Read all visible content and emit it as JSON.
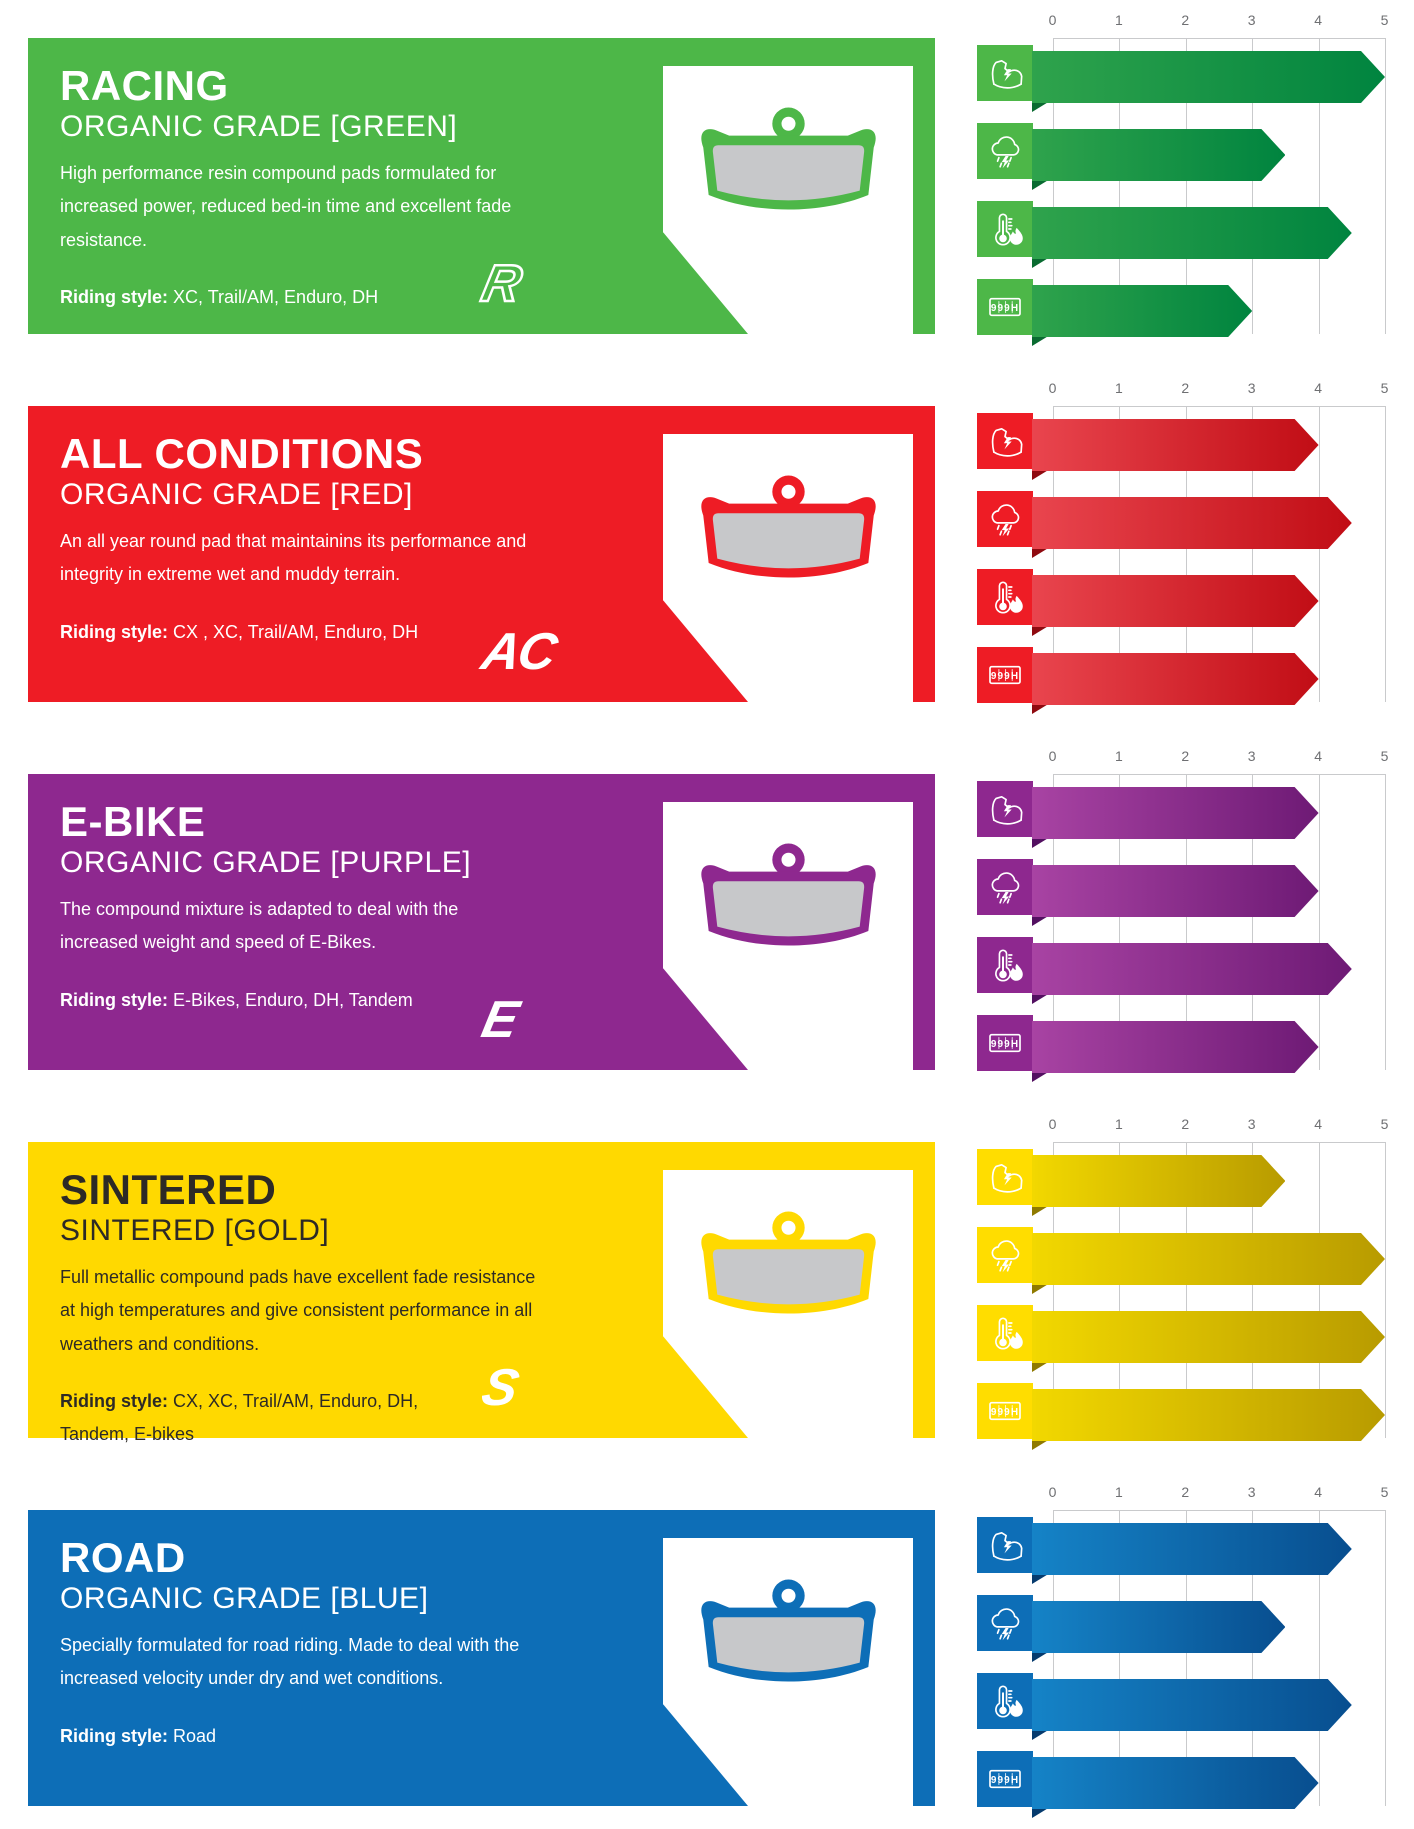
{
  "odometer_label": "999H",
  "axis": {
    "ticks": [
      "0",
      "1",
      "2",
      "3",
      "4",
      "5"
    ],
    "min": 0,
    "max": 5
  },
  "metrics": [
    {
      "id": "braking-power",
      "icon": "bicep-power-icon"
    },
    {
      "id": "wet-weather",
      "icon": "storm-cloud-icon"
    },
    {
      "id": "heat-fade-resistance",
      "icon": "thermometer-flame-icon"
    },
    {
      "id": "durability-pad-life",
      "icon": "odometer-999h-icon"
    }
  ],
  "panels": [
    {
      "id": "racing",
      "title": "RACING",
      "subtitle": "ORGANIC GRADE [GREEN]",
      "description": "High performance resin compound pads formulated for increased power, reduced bed-in time and excellent fade resistance.",
      "riding_style_label": "Riding style:",
      "riding_style": "XC, Trail/AM, Enduro, DH",
      "logo": "R",
      "logo_outline": true,
      "values": [
        5,
        3.5,
        4.5,
        3
      ],
      "colors": {
        "bg": "#4DB748",
        "tile": "#4DB748",
        "barFrom": "#2FA34C",
        "barTo": "#00843F",
        "fold": "#0A6B31",
        "fg": "#ffffff"
      }
    },
    {
      "id": "all-conditions",
      "title": "ALL CONDITIONS",
      "subtitle": "ORGANIC GRADE [RED]",
      "description": "An all year round pad that maintainins its performance and integrity in extreme wet and muddy terrain.",
      "riding_style_label": "Riding style:",
      "riding_style": "CX , XC, Trail/AM, Enduro, DH",
      "logo": "AC",
      "logo_outline": false,
      "values": [
        4,
        4.5,
        4,
        4
      ],
      "colors": {
        "bg": "#EE1C25",
        "tile": "#EE1C25",
        "barFrom": "#E9454E",
        "barTo": "#C10D15",
        "fold": "#8F0A10",
        "fg": "#ffffff"
      }
    },
    {
      "id": "e-bike",
      "title": "E-BIKE",
      "subtitle": "ORGANIC GRADE [PURPLE]",
      "description": "The compound mixture is adapted to deal with the increased weight and speed of E-Bikes.",
      "riding_style_label": "Riding style:",
      "riding_style": "E-Bikes, Enduro, DH, Tandem",
      "logo": "E",
      "logo_outline": false,
      "values": [
        4,
        4,
        4.5,
        4
      ],
      "colors": {
        "bg": "#8E288F",
        "tile": "#8E288F",
        "barFrom": "#A843A3",
        "barTo": "#6E1A75",
        "fold": "#531061",
        "fg": "#ffffff"
      }
    },
    {
      "id": "sintered",
      "title": "SINTERED",
      "subtitle": "SINTERED [GOLD]",
      "description": "Full metallic compound pads have excellent fade resistance at high temperatures and give consistent performance in all weathers and conditions.",
      "riding_style_label": "Riding style:",
      "riding_style": "CX, XC, Trail/AM, Enduro, DH, Tandem, E-bikes",
      "logo": "S",
      "logo_outline": false,
      "values": [
        3.5,
        5,
        5,
        5
      ],
      "colors": {
        "bg": "#FFD900",
        "tile": "#FFDD00",
        "barFrom": "#F2D800",
        "barTo": "#B89B00",
        "fold": "#8F7A00",
        "fg": "#2D2A26"
      }
    },
    {
      "id": "road",
      "title": "ROAD",
      "subtitle": "ORGANIC GRADE [BLUE]",
      "description": "Specially formulated for road riding. Made to deal with the increased velocity under dry and wet conditions.",
      "riding_style_label": "Riding style:",
      "riding_style": "Road",
      "logo": "",
      "logo_outline": false,
      "values": [
        4.5,
        3.5,
        4.5,
        4
      ],
      "colors": {
        "bg": "#0D6EB7",
        "tile": "#0D6EB7",
        "barFrom": "#1583C7",
        "barTo": "#084E8F",
        "fold": "#063B6E",
        "fg": "#ffffff"
      }
    }
  ],
  "chart_data": {
    "type": "bar",
    "orientation": "horizontal",
    "categories": [
      "braking-power",
      "wet-weather",
      "heat-fade-resistance",
      "durability-pad-life"
    ],
    "category_icons": [
      "bicep-power-icon",
      "storm-cloud-icon",
      "thermometer-flame-icon",
      "odometer-999h-icon"
    ],
    "xlim": [
      0,
      5
    ],
    "ticks": [
      0,
      1,
      2,
      3,
      4,
      5
    ],
    "grid": true,
    "legend": false,
    "series": [
      {
        "name": "Racing — Organic Grade [Green]",
        "values": [
          5,
          3.5,
          4.5,
          3
        ],
        "color": "#4DB748"
      },
      {
        "name": "All Conditions — Organic Grade [Red]",
        "values": [
          4,
          4.5,
          4,
          4
        ],
        "color": "#EE1C25"
      },
      {
        "name": "E-Bike — Organic Grade [Purple]",
        "values": [
          4,
          4,
          4.5,
          4
        ],
        "color": "#8E288F"
      },
      {
        "name": "Sintered — Sintered [Gold]",
        "values": [
          3.5,
          5,
          5,
          5
        ],
        "color": "#FFD900"
      },
      {
        "name": "Road — Organic Grade [Blue]",
        "values": [
          4.5,
          3.5,
          4.5,
          4
        ],
        "color": "#0D6EB7"
      }
    ]
  }
}
